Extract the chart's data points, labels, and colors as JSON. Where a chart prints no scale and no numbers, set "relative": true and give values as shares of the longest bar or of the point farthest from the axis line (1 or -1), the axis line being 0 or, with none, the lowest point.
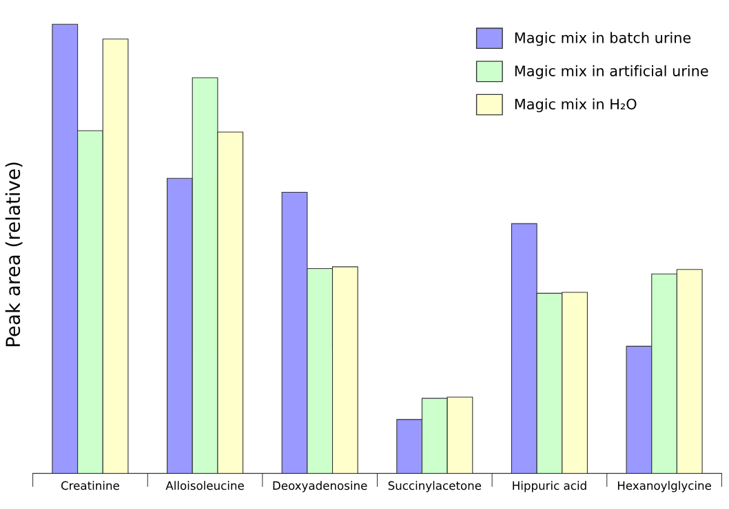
{
  "chart_data": {
    "type": "bar",
    "relative": true,
    "ylabel": "Peak area (relative)",
    "categories": [
      "Creatinine",
      "Alloisoleucine",
      "Deoxyadenosine",
      "Succinylacetone",
      "Hippuric acid",
      "Hexanoylglycine"
    ],
    "series": [
      {
        "name": "Magic mix in batch urine",
        "color": "#9999ff",
        "values": [
          1.0,
          0.657,
          0.626,
          0.12,
          0.556,
          0.283
        ]
      },
      {
        "name": "Magic mix in artificial urine",
        "color": "#ccffcc",
        "values": [
          0.763,
          0.881,
          0.456,
          0.167,
          0.401,
          0.444
        ]
      },
      {
        "name": "Magic mix in H₂O",
        "color": "#ffffcc",
        "values": [
          0.967,
          0.76,
          0.46,
          0.17,
          0.403,
          0.454
        ]
      }
    ],
    "legend": "top right",
    "grid": false
  }
}
